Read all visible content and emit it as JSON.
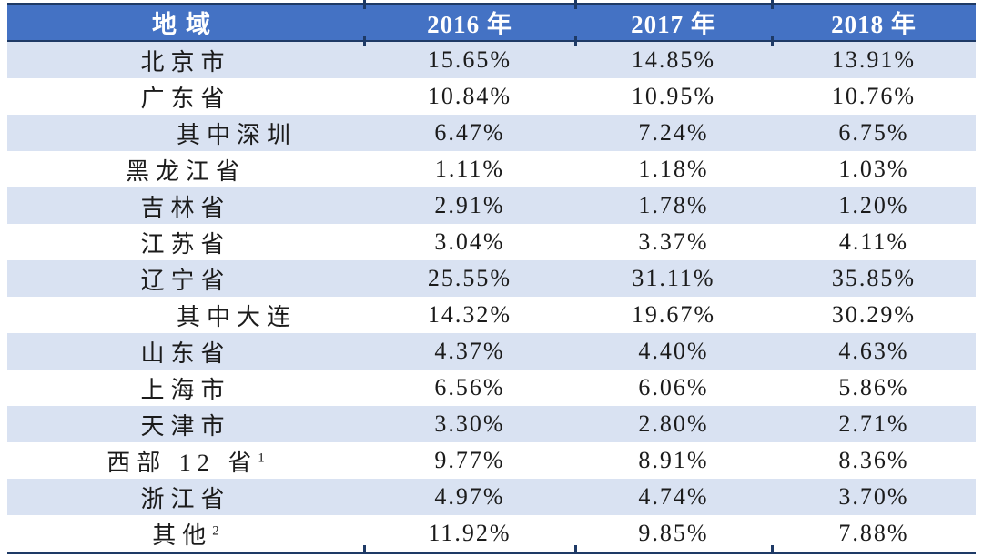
{
  "chart_data": {
    "type": "table",
    "columns": [
      "地域",
      "2016 年",
      "2017 年",
      "2018 年"
    ],
    "rows": [
      {
        "region": "北京市",
        "values": [
          "15.65%",
          "14.85%",
          "13.91%"
        ]
      },
      {
        "region": "广东省",
        "values": [
          "10.84%",
          "10.95%",
          "10.76%"
        ]
      },
      {
        "region": "其中深圳",
        "indent": true,
        "values": [
          "6.47%",
          "7.24%",
          "6.75%"
        ]
      },
      {
        "region": "黑龙江省",
        "values": [
          "1.11%",
          "1.18%",
          "1.03%"
        ]
      },
      {
        "region": "吉林省",
        "values": [
          "2.91%",
          "1.78%",
          "1.20%"
        ]
      },
      {
        "region": "江苏省",
        "values": [
          "3.04%",
          "3.37%",
          "4.11%"
        ]
      },
      {
        "region": "辽宁省",
        "values": [
          "25.55%",
          "31.11%",
          "35.85%"
        ]
      },
      {
        "region": "其中大连",
        "indent": true,
        "values": [
          "14.32%",
          "19.67%",
          "30.29%"
        ]
      },
      {
        "region": "山东省",
        "values": [
          "4.37%",
          "4.40%",
          "4.63%"
        ]
      },
      {
        "region": "上海市",
        "values": [
          "6.56%",
          "6.06%",
          "5.86%"
        ]
      },
      {
        "region": "天津市",
        "values": [
          "3.30%",
          "2.80%",
          "2.71%"
        ]
      },
      {
        "region": "西部 12 省",
        "sup": "1",
        "values": [
          "9.77%",
          "8.91%",
          "8.36%"
        ]
      },
      {
        "region": "浙江省",
        "values": [
          "4.97%",
          "4.74%",
          "3.70%"
        ]
      },
      {
        "region": "其他",
        "sup": "2",
        "values": [
          "11.92%",
          "9.85%",
          "7.88%"
        ]
      }
    ],
    "layout": {
      "striping": "alternate rows light blue, starting with first data row",
      "header_position": "top",
      "grid": "horizontal rules only (top, below header, bottom) with column tick marks"
    }
  },
  "colors": {
    "header_bg": "#4472C4",
    "header_text": "#FFFFFF",
    "row_alt_bg": "#D9E2F2",
    "row_bg": "#FFFFFF",
    "rule": "#1E3A66",
    "body_text": "#1B1B1B"
  }
}
